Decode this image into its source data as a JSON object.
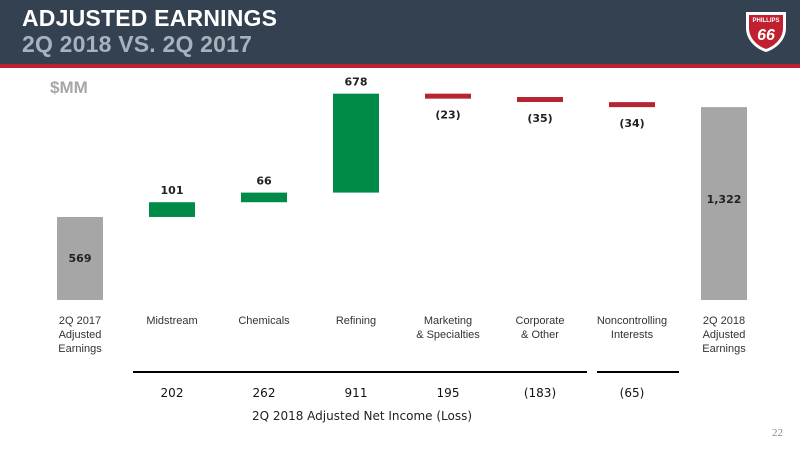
{
  "header": {
    "title_line1": "ADJUSTED EARNINGS",
    "title_line2": "2Q 2018 VS. 2Q 2017",
    "logo_text_top": "PHILLIPS",
    "logo_text_number": "66"
  },
  "units_label": "$MM",
  "page_number": "22",
  "colors": {
    "header_bg": "#334150",
    "accent_red": "#c0202f",
    "total_gray": "#a6a6a6",
    "increase_green": "#008a47",
    "decrease_red": "#b52532"
  },
  "chart_data": {
    "type": "bar",
    "subtype": "waterfall",
    "categories": [
      [
        "2Q 2017",
        "Adjusted",
        "Earnings"
      ],
      [
        "Midstream"
      ],
      [
        "Chemicals"
      ],
      [
        "Refining"
      ],
      [
        "Marketing",
        "& Specialties"
      ],
      [
        "Corporate",
        "& Other"
      ],
      [
        "Noncontrolling",
        "Interests"
      ],
      [
        "2Q 2018",
        "Adjusted",
        "Earnings"
      ]
    ],
    "steps": [
      {
        "kind": "total",
        "value": 569,
        "label": "569"
      },
      {
        "kind": "delta",
        "value": 101,
        "label": "101"
      },
      {
        "kind": "delta",
        "value": 66,
        "label": "66"
      },
      {
        "kind": "delta",
        "value": 678,
        "label": "678"
      },
      {
        "kind": "delta",
        "value": -23,
        "label": "(23)"
      },
      {
        "kind": "delta",
        "value": -35,
        "label": "(35)"
      },
      {
        "kind": "delta",
        "value": -34,
        "label": "(34)"
      },
      {
        "kind": "total",
        "value": 1322,
        "label": "1,322"
      }
    ],
    "secondary_row": {
      "title": "2Q 2018 Adjusted Net Income (Loss)",
      "values": [
        "202",
        "262",
        "911",
        "195",
        "(183)",
        "(65)"
      ]
    }
  }
}
